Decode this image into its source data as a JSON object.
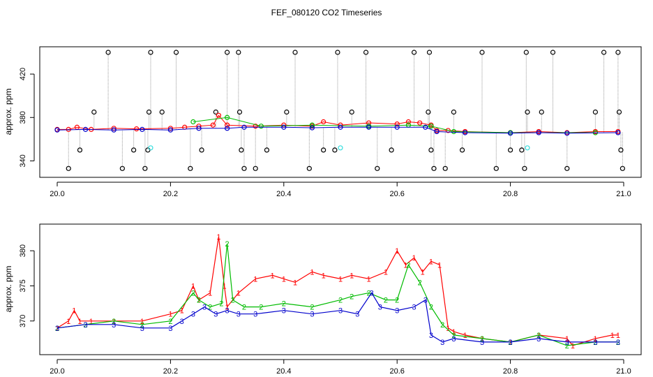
{
  "title": "FEF_080120  CO2 Timeseries",
  "chart_data": [
    {
      "type": "scatter",
      "title": "FEF_080120  CO2 Timeseries",
      "xlabel": "",
      "ylabel": "approx. ppm",
      "xlim": [
        20.0,
        21.0
      ],
      "ylim": [
        330,
        440
      ],
      "xticks": [
        {
          "value": 20.0,
          "label": "20.0"
        },
        {
          "value": 20.2,
          "label": "20.2"
        },
        {
          "value": 20.4,
          "label": "20.4"
        },
        {
          "value": 20.6,
          "label": "20.6"
        },
        {
          "value": 20.8,
          "label": "20.8"
        },
        {
          "value": 21.0,
          "label": "21.0"
        }
      ],
      "yticks": [
        {
          "value": 340,
          "label": "340"
        },
        {
          "value": 380,
          "label": "380"
        },
        {
          "value": 420,
          "label": "420"
        }
      ],
      "grid": false,
      "legend": "none",
      "series": [
        {
          "key": "black",
          "color": "#000000",
          "points": [
            [
              20.02,
              333
            ],
            [
              20.04,
              350
            ],
            [
              20.065,
              385
            ],
            [
              20.09,
              440
            ],
            [
              20.115,
              333
            ],
            [
              20.135,
              350
            ],
            [
              20.155,
              333
            ],
            [
              20.16,
              350
            ],
            [
              20.162,
              385
            ],
            [
              20.165,
              440
            ],
            [
              20.185,
              385
            ],
            [
              20.21,
              440
            ],
            [
              20.235,
              333
            ],
            [
              20.255,
              350
            ],
            [
              20.28,
              385
            ],
            [
              20.3,
              440
            ],
            [
              20.32,
              440
            ],
            [
              20.322,
              385
            ],
            [
              20.325,
              350
            ],
            [
              20.33,
              333
            ],
            [
              20.35,
              333
            ],
            [
              20.37,
              350
            ],
            [
              20.405,
              385
            ],
            [
              20.42,
              440
            ],
            [
              20.445,
              333
            ],
            [
              20.47,
              350
            ],
            [
              20.49,
              350
            ],
            [
              20.495,
              440
            ],
            [
              20.52,
              385
            ],
            [
              20.545,
              440
            ],
            [
              20.565,
              333
            ],
            [
              20.59,
              350
            ],
            [
              20.63,
              440
            ],
            [
              20.655,
              385
            ],
            [
              20.657,
              440
            ],
            [
              20.66,
              350
            ],
            [
              20.665,
              333
            ],
            [
              20.685,
              333
            ],
            [
              20.7,
              385
            ],
            [
              20.715,
              350
            ],
            [
              20.75,
              440
            ],
            [
              20.775,
              333
            ],
            [
              20.8,
              350
            ],
            [
              20.82,
              350
            ],
            [
              20.825,
              333
            ],
            [
              20.828,
              440
            ],
            [
              20.83,
              385
            ],
            [
              20.855,
              385
            ],
            [
              20.875,
              440
            ],
            [
              20.9,
              333
            ],
            [
              20.95,
              385
            ],
            [
              20.965,
              440
            ],
            [
              20.99,
              440
            ],
            [
              20.992,
              385
            ],
            [
              20.995,
              350
            ],
            [
              20.998,
              333
            ]
          ]
        },
        {
          "key": "red",
          "color": "#ff0000",
          "points": [
            [
              20.0,
              369
            ],
            [
              20.02,
              369
            ],
            [
              20.035,
              371
            ],
            [
              20.06,
              369
            ],
            [
              20.1,
              370
            ],
            [
              20.14,
              369.5
            ],
            [
              20.2,
              370
            ],
            [
              20.225,
              371
            ],
            [
              20.25,
              372
            ],
            [
              20.275,
              373
            ],
            [
              20.285,
              382
            ],
            [
              20.3,
              373
            ],
            [
              20.35,
              372
            ],
            [
              20.4,
              373
            ],
            [
              20.45,
              372
            ],
            [
              20.47,
              376
            ],
            [
              20.5,
              373
            ],
            [
              20.55,
              375
            ],
            [
              20.6,
              374
            ],
            [
              20.62,
              376
            ],
            [
              20.64,
              375
            ],
            [
              20.66,
              373
            ],
            [
              20.67,
              368
            ],
            [
              20.69,
              368
            ],
            [
              20.72,
              367
            ],
            [
              20.8,
              366
            ],
            [
              20.85,
              367
            ],
            [
              20.9,
              366
            ],
            [
              20.95,
              367
            ],
            [
              20.99,
              367
            ]
          ]
        },
        {
          "key": "green",
          "color": "#00bb00",
          "points": [
            [
              20.24,
              376
            ],
            [
              20.3,
              380
            ],
            [
              20.36,
              372
            ],
            [
              20.45,
              373
            ],
            [
              20.55,
              372
            ],
            [
              20.62,
              373
            ],
            [
              20.66,
              372
            ],
            [
              20.7,
              367
            ],
            [
              20.8,
              366
            ],
            [
              20.95,
              366
            ]
          ]
        },
        {
          "key": "blue",
          "color": "#0000cc",
          "points": [
            [
              20.0,
              368.5
            ],
            [
              20.05,
              369
            ],
            [
              20.1,
              368.5
            ],
            [
              20.15,
              369
            ],
            [
              20.2,
              368.5
            ],
            [
              20.25,
              370
            ],
            [
              20.3,
              370
            ],
            [
              20.33,
              371
            ],
            [
              20.4,
              371
            ],
            [
              20.45,
              370.5
            ],
            [
              20.5,
              371
            ],
            [
              20.55,
              371
            ],
            [
              20.6,
              371
            ],
            [
              20.65,
              371
            ],
            [
              20.67,
              367
            ],
            [
              20.72,
              366
            ],
            [
              20.8,
              365.5
            ],
            [
              20.85,
              366
            ],
            [
              20.9,
              365.5
            ],
            [
              20.99,
              366
            ]
          ]
        },
        {
          "key": "cyan",
          "color": "#33dddd",
          "points": [
            [
              20.165,
              352
            ],
            [
              20.5,
              352
            ],
            [
              20.83,
              352
            ]
          ]
        }
      ]
    },
    {
      "type": "line",
      "title": "",
      "xlabel": "",
      "ylabel": "approx. ppm",
      "xlim": [
        20.0,
        21.0
      ],
      "ylim": [
        366,
        383
      ],
      "xticks": [
        {
          "value": 20.0,
          "label": "20.0"
        },
        {
          "value": 20.2,
          "label": "20.2"
        },
        {
          "value": 20.4,
          "label": "20.4"
        },
        {
          "value": 20.6,
          "label": "20.6"
        },
        {
          "value": 20.8,
          "label": "20.8"
        },
        {
          "value": 21.0,
          "label": "21.0"
        }
      ],
      "yticks": [
        {
          "value": 370,
          "label": "370"
        },
        {
          "value": 375,
          "label": "375"
        },
        {
          "value": 380,
          "label": "380"
        }
      ],
      "grid": false,
      "legend": "none",
      "series": [
        {
          "key": "1",
          "color": "#ff0000",
          "symbol": "1",
          "x": [
            20.0,
            20.02,
            20.03,
            20.04,
            20.06,
            20.1,
            20.15,
            20.2,
            20.22,
            20.24,
            20.25,
            20.27,
            20.285,
            20.295,
            20.3,
            20.32,
            20.35,
            20.38,
            20.4,
            20.42,
            20.45,
            20.47,
            20.5,
            20.52,
            20.55,
            20.58,
            20.6,
            20.615,
            20.63,
            20.645,
            20.66,
            20.675,
            20.69,
            20.7,
            20.72,
            20.75,
            20.8,
            20.85,
            20.9,
            20.91,
            20.95,
            20.98,
            20.99
          ],
          "y": [
            369,
            370,
            371.5,
            370,
            370,
            370,
            370,
            371,
            371.5,
            375,
            373,
            374,
            382,
            375,
            372,
            374,
            376,
            376.5,
            376,
            375.5,
            377,
            376.5,
            376,
            376.5,
            376,
            377,
            380,
            378,
            379,
            377,
            378.5,
            378,
            369,
            368.5,
            368,
            367.5,
            367,
            368,
            367.5,
            366.5,
            367.5,
            368,
            368
          ]
        },
        {
          "key": "2",
          "color": "#00bb00",
          "symbol": "2",
          "x": [
            20.0,
            20.05,
            20.1,
            20.15,
            20.2,
            20.24,
            20.25,
            20.27,
            20.29,
            20.3,
            20.31,
            20.33,
            20.36,
            20.4,
            20.45,
            20.5,
            20.52,
            20.55,
            20.58,
            20.6,
            20.62,
            20.64,
            20.66,
            20.68,
            20.7,
            20.75,
            20.8,
            20.85,
            20.9,
            20.95,
            20.99
          ],
          "y": [
            369,
            369.5,
            370,
            369.5,
            370,
            374,
            373,
            372,
            372.5,
            381,
            373,
            372,
            372,
            372.5,
            372,
            373,
            373.5,
            374,
            373,
            373,
            378,
            375.5,
            372,
            369.5,
            368,
            367.5,
            367,
            368,
            366.5,
            367,
            367
          ]
        },
        {
          "key": "3",
          "color": "#0000cc",
          "symbol": "3",
          "x": [
            20.0,
            20.05,
            20.1,
            20.15,
            20.2,
            20.22,
            20.24,
            20.26,
            20.28,
            20.3,
            20.32,
            20.35,
            20.4,
            20.45,
            20.5,
            20.53,
            20.555,
            20.57,
            20.6,
            20.63,
            20.65,
            20.66,
            20.68,
            20.7,
            20.75,
            20.8,
            20.85,
            20.9,
            20.95,
            20.99
          ],
          "y": [
            369,
            369.5,
            369.5,
            369,
            369,
            370,
            371,
            372,
            371,
            371.5,
            371,
            371,
            371.5,
            371,
            371.5,
            371,
            374,
            372,
            371.5,
            372,
            373,
            368,
            367,
            367.5,
            367,
            367,
            367.5,
            367,
            367,
            367
          ]
        }
      ]
    }
  ]
}
